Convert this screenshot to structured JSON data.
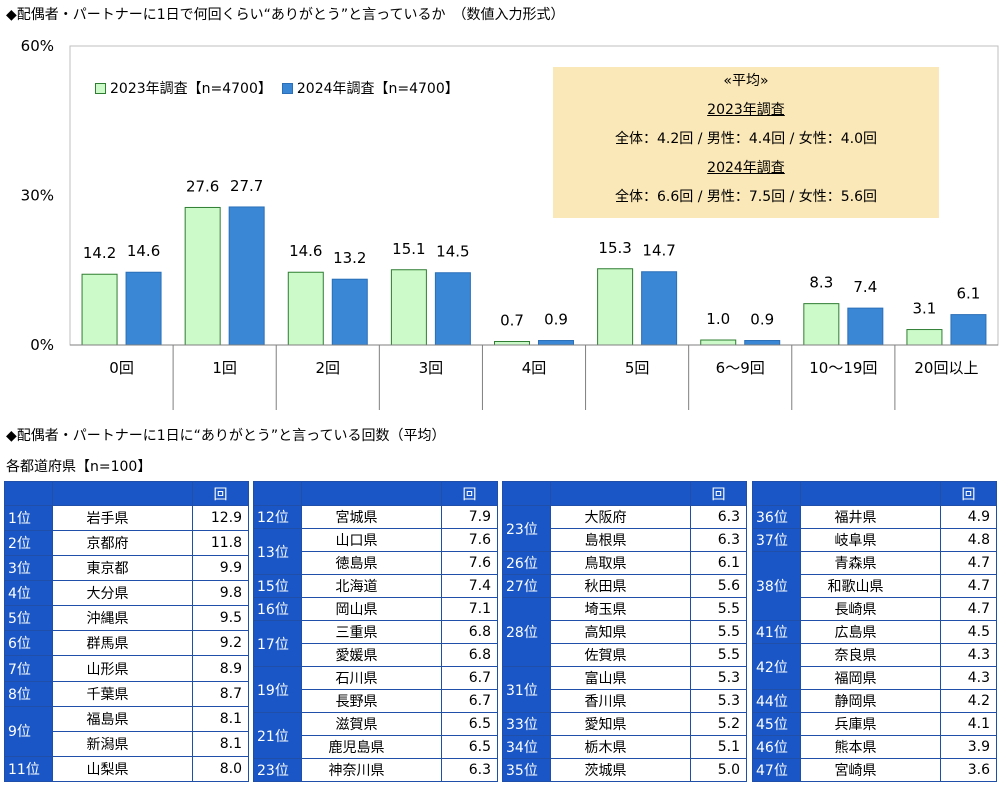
{
  "titles": {
    "chart": "◆配偶者・パートナーに1日で何回くらい“ありがとう”と言っているか　（数値入力形式）",
    "section2": "◆配偶者・パートナーに1日に“ありがとう”と言っている回数（平均）",
    "subtitle": "各都道府県【n=100】"
  },
  "colors": {
    "bar2023": "#cdfac9",
    "bar2023_border": "#2e7d32",
    "bar2024": "#3a87d6",
    "table_blue": "#1a56c6",
    "avg_box": "#fbe8b8"
  },
  "chart_data": {
    "type": "bar",
    "categories": [
      "0回",
      "1回",
      "2回",
      "3回",
      "4回",
      "5回",
      "6〜9回",
      "10〜19回",
      "20回以上"
    ],
    "series": [
      {
        "name": "2023年調査【n=4700】",
        "values": [
          14.2,
          27.6,
          14.6,
          15.1,
          0.7,
          15.3,
          1.0,
          8.3,
          3.1
        ],
        "labels": [
          "14.2",
          "27.6",
          "14.6",
          "15.1",
          "0.7",
          "15.3",
          "1.0",
          "8.3",
          "3.1"
        ]
      },
      {
        "name": "2024年調査【n=4700】",
        "values": [
          14.6,
          27.7,
          13.2,
          14.5,
          0.9,
          14.7,
          0.9,
          7.4,
          6.1
        ],
        "labels": [
          "14.6",
          "27.7",
          "13.2",
          "14.5",
          "0.9",
          "14.7",
          "0.9",
          "7.4",
          "6.1"
        ]
      }
    ],
    "yticks": [
      {
        "value": 0,
        "label": "0%"
      },
      {
        "value": 30,
        "label": "30%"
      },
      {
        "value": 60,
        "label": "60%"
      }
    ],
    "ylim": [
      0,
      60
    ],
    "legend": "top-left"
  },
  "averages": {
    "heading": "«平均»",
    "y2023_label": "2023年調査",
    "y2023_text": "全体：4.2回 / 男性：4.4回 / 女性：4.0回",
    "y2024_label": "2024年調査",
    "y2024_text": "全体：6.6回 / 男性：7.5回 / 女性：5.6回"
  },
  "tables": {
    "header": "回",
    "t1": [
      [
        "1位",
        "岩手県",
        "12.9"
      ],
      [
        "2位",
        "京都府",
        "11.8"
      ],
      [
        "3位",
        "東京都",
        "9.9"
      ],
      [
        "4位",
        "大分県",
        "9.8"
      ],
      [
        "5位",
        "沖縄県",
        "9.5"
      ],
      [
        "6位",
        "群馬県",
        "9.2"
      ],
      [
        "7位",
        "山形県",
        "8.9"
      ],
      [
        "8位",
        "千葉県",
        "8.7"
      ],
      [
        "9位",
        "福島県",
        "8.1"
      ],
      [
        "",
        "新潟県",
        "8.1"
      ],
      [
        "11位",
        "山梨県",
        "8.0"
      ]
    ],
    "t2": [
      [
        "12位",
        "宮城県",
        "7.9"
      ],
      [
        "13位",
        "山口県",
        "7.6"
      ],
      [
        "",
        "徳島県",
        "7.6"
      ],
      [
        "15位",
        "北海道",
        "7.4"
      ],
      [
        "16位",
        "岡山県",
        "7.1"
      ],
      [
        "17位",
        "三重県",
        "6.8"
      ],
      [
        "",
        "愛媛県",
        "6.8"
      ],
      [
        "19位",
        "石川県",
        "6.7"
      ],
      [
        "",
        "長野県",
        "6.7"
      ],
      [
        "21位",
        "滋賀県",
        "6.5"
      ],
      [
        "",
        "鹿児島県",
        "6.5"
      ],
      [
        "23位",
        "神奈川県",
        "6.3"
      ]
    ],
    "t3": [
      [
        "23位",
        "大阪府",
        "6.3"
      ],
      [
        "",
        "島根県",
        "6.3"
      ],
      [
        "26位",
        "鳥取県",
        "6.1"
      ],
      [
        "27位",
        "秋田県",
        "5.6"
      ],
      [
        "28位",
        "埼玉県",
        "5.5"
      ],
      [
        "",
        "高知県",
        "5.5"
      ],
      [
        "",
        "佐賀県",
        "5.5"
      ],
      [
        "31位",
        "富山県",
        "5.3"
      ],
      [
        "",
        "香川県",
        "5.3"
      ],
      [
        "33位",
        "愛知県",
        "5.2"
      ],
      [
        "34位",
        "栃木県",
        "5.1"
      ],
      [
        "35位",
        "茨城県",
        "5.0"
      ]
    ],
    "t4": [
      [
        "36位",
        "福井県",
        "4.9"
      ],
      [
        "37位",
        "岐阜県",
        "4.8"
      ],
      [
        "38位",
        "青森県",
        "4.7"
      ],
      [
        "",
        "和歌山県",
        "4.7"
      ],
      [
        "",
        "長崎県",
        "4.7"
      ],
      [
        "41位",
        "広島県",
        "4.5"
      ],
      [
        "42位",
        "奈良県",
        "4.3"
      ],
      [
        "",
        "福岡県",
        "4.3"
      ],
      [
        "44位",
        "静岡県",
        "4.2"
      ],
      [
        "45位",
        "兵庫県",
        "4.1"
      ],
      [
        "46位",
        "熊本県",
        "3.9"
      ],
      [
        "47位",
        "宮崎県",
        "3.6"
      ]
    ]
  }
}
